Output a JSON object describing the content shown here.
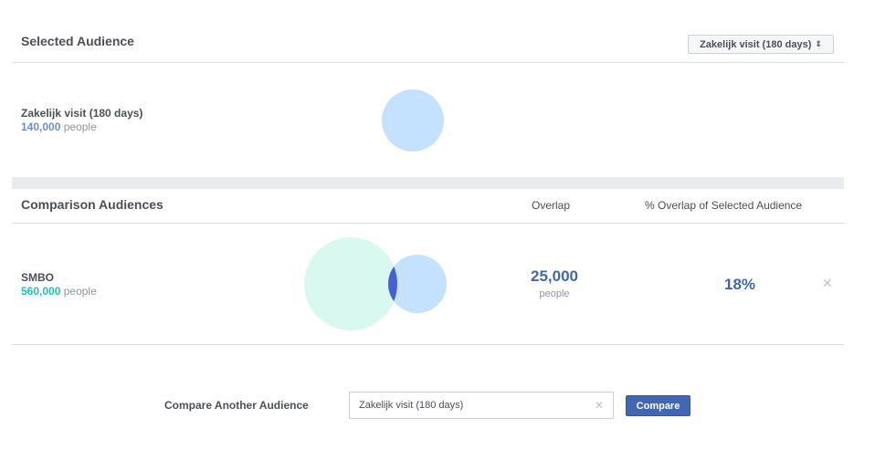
{
  "selected": {
    "title": "Selected Audience",
    "dropdown_value": "Zakelijk visit (180 days)",
    "audience": {
      "name": "Zakelijk visit (180 days)",
      "count": "140,000",
      "unit": "people"
    }
  },
  "comparison": {
    "title": "Comparison Audiences",
    "col_overlap": "Overlap",
    "col_pct": "% Overlap of Selected Audience",
    "rows": [
      {
        "name": "SMBO",
        "count": "560,000",
        "unit": "people",
        "overlap": "25,000",
        "overlap_unit": "people",
        "pct": "18%"
      }
    ]
  },
  "compare_another": {
    "label": "Compare Another Audience",
    "input_value": "Zakelijk visit (180 days)",
    "button_label": "Compare"
  },
  "colors": {
    "selected_circle": "#c4e1fd",
    "comparison_circle": "#d8f8f0",
    "overlap_lens": "#4563cf",
    "selected_count": "#6d8ed6",
    "comparison_count": "#19c5b3",
    "accent": "#4267b2"
  },
  "icons": {
    "dropdown": "sort-caret-icon",
    "remove": "close-icon",
    "clear": "clear-icon"
  }
}
